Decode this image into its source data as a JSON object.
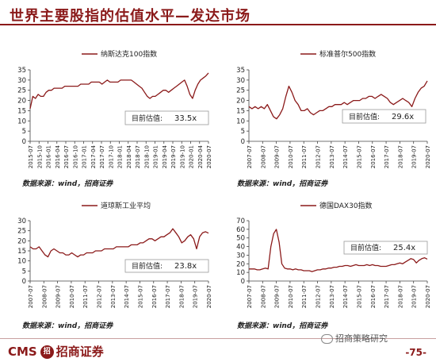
{
  "page": {
    "title": "世界主要股指的估值水平—发达市场",
    "source_label": "数据来源：wind，招商证券",
    "footer_logo_cms": "CMS",
    "footer_logo_seal": "招",
    "footer_logo_name": "招商证券",
    "wechat_label": "招商策略研究",
    "page_number": "-75-"
  },
  "colors": {
    "line": "#8b1a1a",
    "title": "#8b1a1a",
    "box_border": "#999999"
  },
  "chart_data": [
    {
      "type": "line",
      "legend": "纳斯达克100指数",
      "annotation": "目前估值:",
      "annotation_value": "33.5x",
      "ylim": [
        0,
        35
      ],
      "yticks": [
        0,
        5,
        10,
        15,
        20,
        25,
        30,
        35
      ],
      "xticks": [
        "2015-07",
        "2015-10",
        "2016-01",
        "2016-04",
        "2016-07",
        "2016-10",
        "2017-01",
        "2017-04",
        "2017-07",
        "2017-10",
        "2018-01",
        "2018-04",
        "2018-07",
        "2018-10",
        "2019-01",
        "2019-04",
        "2019-07",
        "2019-10",
        "2020-01",
        "2020-04",
        "2020-07"
      ],
      "series": [
        {
          "values": [
            16,
            22,
            21,
            23,
            22,
            22,
            24,
            25,
            25,
            26,
            26,
            26,
            26,
            27,
            27,
            27,
            27,
            27,
            27,
            28,
            28,
            28,
            28,
            29,
            29,
            29,
            29,
            28,
            29,
            30,
            29,
            29,
            29,
            29,
            30,
            30,
            30,
            30,
            30,
            29,
            28,
            27,
            26,
            24,
            22,
            21,
            22,
            22,
            23,
            24,
            25,
            25,
            24,
            25,
            26,
            27,
            28,
            29,
            30,
            27,
            23,
            21,
            25,
            28,
            30,
            31,
            32,
            33.5
          ]
        }
      ]
    },
    {
      "type": "line",
      "legend": "标准普尔500指数",
      "annotation": "目前估值:",
      "annotation_value": "29.6x",
      "ylim": [
        0,
        35
      ],
      "yticks": [
        0,
        5,
        10,
        15,
        20,
        25,
        30,
        35
      ],
      "xticks": [
        "2007-07",
        "2008-07",
        "2009-07",
        "2010-07",
        "2011-07",
        "2012-07",
        "2013-07",
        "2014-07",
        "2015-07",
        "2016-07",
        "2017-07",
        "2018-07",
        "2019-07",
        "2020-07"
      ],
      "series": [
        {
          "values": [
            17,
            16,
            17,
            16,
            17,
            16,
            18,
            15,
            12,
            11,
            13,
            16,
            22,
            27,
            24,
            20,
            18,
            15,
            15,
            16,
            14,
            13,
            14,
            15,
            15,
            16,
            17,
            17,
            18,
            18,
            18,
            19,
            18,
            19,
            20,
            20,
            20,
            21,
            21,
            22,
            22,
            21,
            22,
            23,
            22,
            21,
            19,
            18,
            19,
            20,
            21,
            20,
            19,
            17,
            21,
            24,
            26,
            27,
            29.6
          ]
        }
      ]
    },
    {
      "type": "line",
      "legend": "道琼斯工业平均",
      "annotation": "目前估值:",
      "annotation_value": "23.8x",
      "ylim": [
        0,
        30
      ],
      "yticks": [
        0,
        5,
        10,
        15,
        20,
        25,
        30
      ],
      "xticks": [
        "2007-07",
        "2008-07",
        "2009-07",
        "2010-07",
        "2011-07",
        "2012-07",
        "2013-07",
        "2014-07",
        "2015-07",
        "2016-07",
        "2017-07",
        "2018-07",
        "2019-07",
        "2020-07"
      ],
      "series": [
        {
          "values": [
            17,
            16,
            16,
            17,
            15,
            13,
            12,
            15,
            16,
            15,
            14,
            14,
            13,
            13,
            14,
            13,
            12,
            13,
            13,
            14,
            14,
            14,
            15,
            15,
            15,
            16,
            16,
            16,
            16,
            17,
            17,
            17,
            17,
            17,
            18,
            18,
            18,
            19,
            19,
            20,
            21,
            21,
            20,
            21,
            22,
            22,
            23,
            24,
            26,
            24,
            22,
            19,
            20,
            22,
            23,
            21,
            16,
            22,
            24,
            24.5,
            23.8
          ]
        }
      ]
    },
    {
      "type": "line",
      "legend": "德国DAX30指数",
      "annotation": "目前估值:",
      "annotation_value": "25.4x",
      "ylim": [
        0,
        70
      ],
      "yticks": [
        0,
        10,
        20,
        30,
        40,
        50,
        60,
        70
      ],
      "xticks": [
        "2007-07",
        "2008-07",
        "2009-07",
        "2010-07",
        "2011-07",
        "2012-07",
        "2013-07",
        "2014-07",
        "2015-07",
        "2016-07",
        "2017-07",
        "2018-07",
        "2019-07",
        "2020-07"
      ],
      "series": [
        {
          "values": [
            14,
            14,
            14,
            13,
            13,
            14,
            15,
            14,
            40,
            55,
            60,
            45,
            20,
            15,
            14,
            14,
            13,
            14,
            13,
            13,
            12,
            12,
            12,
            11,
            12,
            13,
            13,
            14,
            14,
            15,
            15,
            16,
            16,
            17,
            17,
            18,
            18,
            17,
            18,
            19,
            18,
            18,
            18,
            19,
            18,
            19,
            18,
            18,
            17,
            17,
            17,
            18,
            19,
            19,
            20,
            21,
            20,
            22,
            24,
            26,
            25,
            21,
            24,
            26,
            27,
            25.4
          ]
        }
      ]
    }
  ]
}
